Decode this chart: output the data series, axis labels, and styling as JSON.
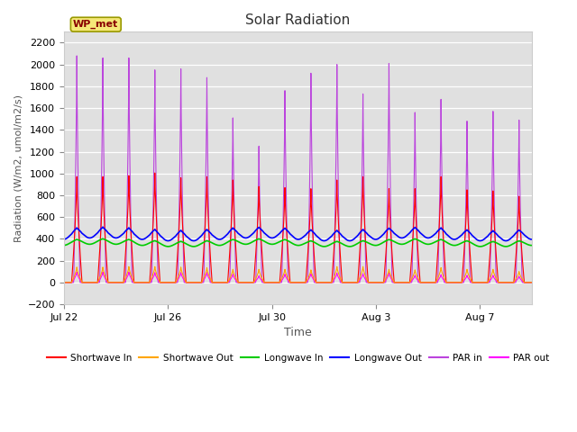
{
  "title": "Solar Radiation",
  "ylabel": "Radiation (W/m2, umol/m2/s)",
  "xlabel": "Time",
  "ylim": [
    -200,
    2300
  ],
  "yticks": [
    -200,
    0,
    200,
    400,
    600,
    800,
    1000,
    1200,
    1400,
    1600,
    1800,
    2000,
    2200
  ],
  "bg_color": "#e0e0e0",
  "fig_color": "#ffffff",
  "station_label": "WP_met",
  "lines": {
    "shortwave_in": {
      "color": "#ff0000",
      "label": "Shortwave In"
    },
    "shortwave_out": {
      "color": "#ffa500",
      "label": "Shortwave Out"
    },
    "longwave_in": {
      "color": "#00cc00",
      "label": "Longwave In"
    },
    "longwave_out": {
      "color": "#0000ff",
      "label": "Longwave Out"
    },
    "par_in": {
      "color": "#bb44dd",
      "label": "PAR in"
    },
    "par_out": {
      "color": "#ff00ff",
      "label": "PAR out"
    }
  },
  "n_days": 18,
  "points_per_day": 144,
  "shortwave_in_peaks": [
    970,
    970,
    980,
    1005,
    960,
    970,
    940,
    880,
    870,
    860,
    940,
    970,
    860,
    860,
    970,
    850,
    840,
    790
  ],
  "shortwave_out_peaks": [
    140,
    140,
    145,
    145,
    140,
    135,
    120,
    120,
    120,
    115,
    145,
    145,
    120,
    115,
    135,
    120,
    120,
    100
  ],
  "longwave_in_base": 360,
  "longwave_out_base": 430,
  "par_in_peaks": [
    2080,
    2060,
    2060,
    1950,
    1960,
    1880,
    1510,
    1250,
    1760,
    1920,
    2000,
    1730,
    2010,
    1560,
    1680,
    1480,
    1570,
    1490
  ],
  "par_out_peaks": [
    95,
    95,
    95,
    90,
    90,
    90,
    75,
    60,
    75,
    80,
    85,
    80,
    85,
    65,
    70,
    65,
    65,
    55
  ],
  "x_tick_labels": [
    "Jul 22",
    "Jul 26",
    "Jul 30",
    "Aug 3",
    "Aug 7"
  ],
  "x_tick_positions": [
    0,
    4,
    8,
    12,
    16
  ]
}
